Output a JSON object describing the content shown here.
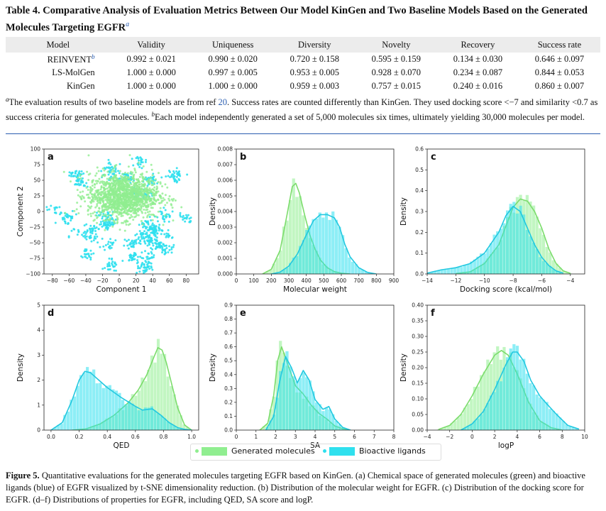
{
  "table": {
    "title": "Table 4. Comparative Analysis of Evaluation Metrics Between Our Model KinGen and Two Baseline Models Based on the Generated Molecules Targeting EGFR",
    "title_mark": "a",
    "headers": [
      "Model",
      "Validity",
      "Uniqueness",
      "Diversity",
      "Novelty",
      "Recovery",
      "Success rate"
    ],
    "rows": [
      {
        "model": "REINVENT",
        "mark": "b",
        "cells": [
          "0.992 ± 0.021",
          "0.990 ± 0.020",
          "0.720 ± 0.158",
          "0.595 ± 0.159",
          "0.134 ± 0.030",
          "0.646 ± 0.097"
        ]
      },
      {
        "model": "LS-MolGen",
        "mark": "",
        "cells": [
          "1.000 ± 0.000",
          "0.997 ± 0.005",
          "0.953 ± 0.005",
          "0.928 ± 0.070",
          "0.234 ± 0.087",
          "0.844 ± 0.053"
        ]
      },
      {
        "model": "KinGen",
        "mark": "",
        "cells": [
          "1.000 ± 0.000",
          "1.000 ± 0.000",
          "0.959 ± 0.003",
          "0.757 ± 0.015",
          "0.240 ± 0.016",
          "0.860 ± 0.007"
        ]
      }
    ],
    "footnote": {
      "a_mark": "a",
      "a_pre": "The evaluation results of two baseline models are from ref ",
      "a_ref": "20",
      "a_post": ". Success rates are counted differently than KinGen. They used docking score <−7 and similarity <0.7 as success criteria for generated molecules. ",
      "b_mark": "b",
      "b_text": "Each model independently generated a set of 5,000 molecules six times, ultimately yielding 30,000 molecules per model."
    }
  },
  "figure": {
    "colors": {
      "generated": "#90ee90",
      "bioactive": "#2fe0ee",
      "generated_line": "#7cdc6c",
      "bioactive_line": "#22c8e0"
    },
    "legend": {
      "generated": "Generated molecules",
      "bioactive": "Bioactive ligands"
    },
    "caption_label": "Figure 5.",
    "caption_text": " Quantitative evaluations for the generated molecules targeting EGFR based on KinGen. (a) Chemical space of generated molecules (green) and bioactive ligands (blue) of EGFR visualized by t-SNE dimensionality reduction. (b) Distribution of the molecular weight for EGFR. (c) Distribution of the docking score for EGFR. (d–f) Distributions of properties for EGFR, including QED, SA score and logP."
  },
  "chart_data": [
    {
      "type": "scatter",
      "panel": "a",
      "xlabel": "Component 1",
      "ylabel": "Component 2",
      "xlim": [
        -90,
        95
      ],
      "ylim": [
        -100,
        100
      ],
      "xticks": [
        -80,
        -60,
        -40,
        -20,
        0,
        20,
        40,
        60,
        80
      ],
      "yticks": [
        -100,
        -75,
        -50,
        -25,
        0,
        25,
        50,
        75,
        100
      ],
      "series": [
        {
          "name": "Generated molecules",
          "center": [
            5,
            25
          ],
          "spread": [
            28,
            26
          ]
        },
        {
          "name": "Bioactive ligands",
          "center": [
            0,
            0
          ],
          "spread": [
            55,
            50
          ]
        }
      ]
    },
    {
      "type": "area",
      "panel": "b",
      "xlabel": "Molecular weight",
      "ylabel": "Density",
      "xlim": [
        0,
        900
      ],
      "ylim": [
        0,
        0.008
      ],
      "xticks": [
        0,
        100,
        200,
        300,
        400,
        500,
        600,
        700,
        800,
        900
      ],
      "yticks": [
        0,
        0.001,
        0.002,
        0.003,
        0.004,
        0.005,
        0.006,
        0.007,
        0.008
      ],
      "series": [
        {
          "name": "Generated molecules",
          "x": [
            150,
            200,
            250,
            290,
            320,
            340,
            360,
            390,
            420,
            450,
            480,
            520,
            560,
            600,
            650
          ],
          "y": [
            0,
            0.0003,
            0.0015,
            0.0038,
            0.0056,
            0.0058,
            0.0052,
            0.0038,
            0.0025,
            0.0016,
            0.0009,
            0.0004,
            0.00015,
            5e-05,
            0
          ]
        },
        {
          "name": "Bioactive ligands",
          "x": [
            200,
            250,
            300,
            350,
            400,
            440,
            480,
            520,
            560,
            590,
            620,
            650,
            700,
            750,
            800
          ],
          "y": [
            0,
            0.00012,
            0.0005,
            0.0013,
            0.0025,
            0.0034,
            0.0038,
            0.0038,
            0.0036,
            0.003,
            0.0019,
            0.0011,
            0.0004,
            0.0001,
            0
          ]
        }
      ]
    },
    {
      "type": "area",
      "panel": "c",
      "xlabel": "Docking score (kcal/mol)",
      "ylabel": "Density",
      "xlim": [
        -14,
        -3
      ],
      "ylim": [
        0,
        0.6
      ],
      "xticks": [
        -14,
        -12,
        -10,
        -8,
        -6,
        -4
      ],
      "yticks": [
        0,
        0.1,
        0.2,
        0.3,
        0.4,
        0.5,
        0.6
      ],
      "series": [
        {
          "name": "Generated molecules",
          "x": [
            -12,
            -11,
            -10,
            -9,
            -8.5,
            -8,
            -7.5,
            -7,
            -6.5,
            -6,
            -5.5,
            -5,
            -4.5,
            -4
          ],
          "y": [
            0.002,
            0.01,
            0.05,
            0.14,
            0.23,
            0.32,
            0.36,
            0.35,
            0.3,
            0.22,
            0.12,
            0.05,
            0.015,
            0.003
          ]
        },
        {
          "name": "Bioactive ligands",
          "x": [
            -14,
            -13,
            -12,
            -11,
            -10,
            -9,
            -8.5,
            -8,
            -7.5,
            -7,
            -6.5,
            -6,
            -5.5,
            -5,
            -4.5
          ],
          "y": [
            0.004,
            0.02,
            0.03,
            0.05,
            0.1,
            0.2,
            0.28,
            0.325,
            0.3,
            0.22,
            0.14,
            0.08,
            0.04,
            0.015,
            0.004
          ]
        }
      ]
    },
    {
      "type": "area",
      "panel": "d",
      "xlabel": "QED",
      "ylabel": "Density",
      "xlim": [
        -0.05,
        1.05
      ],
      "ylim": [
        0,
        5
      ],
      "xticks": [
        0,
        0.2,
        0.4,
        0.6,
        0.8,
        1.0
      ],
      "yticks": [
        0,
        1,
        2,
        3,
        4,
        5
      ],
      "series": [
        {
          "name": "Generated molecules",
          "x": [
            0.15,
            0.25,
            0.35,
            0.45,
            0.55,
            0.62,
            0.68,
            0.73,
            0.76,
            0.79,
            0.82,
            0.86,
            0.9,
            0.95,
            1.0
          ],
          "y": [
            0,
            0.05,
            0.25,
            0.6,
            1.1,
            1.6,
            2.2,
            2.9,
            3.3,
            3.2,
            2.7,
            1.8,
            0.9,
            0.2,
            0
          ]
        },
        {
          "name": "Bioactive ligands",
          "x": [
            0.0,
            0.08,
            0.15,
            0.2,
            0.24,
            0.28,
            0.33,
            0.4,
            0.5,
            0.6,
            0.65,
            0.72,
            0.78,
            0.84,
            0.9,
            0.95,
            1.0
          ],
          "y": [
            0,
            0.3,
            1.2,
            2.0,
            2.35,
            2.3,
            2.05,
            1.7,
            1.3,
            0.95,
            0.8,
            0.85,
            0.6,
            0.3,
            0.1,
            0.03,
            0
          ]
        }
      ]
    },
    {
      "type": "area",
      "panel": "e",
      "xlabel": "SA",
      "ylabel": "Density",
      "xlim": [
        0,
        8
      ],
      "ylim": [
        0,
        0.9
      ],
      "xticks": [
        0,
        1,
        2,
        3,
        4,
        5,
        6,
        7,
        8
      ],
      "yticks": [
        0,
        0.1,
        0.2,
        0.3,
        0.4,
        0.5,
        0.6,
        0.7,
        0.8,
        0.9
      ],
      "series": [
        {
          "name": "Generated molecules",
          "x": [
            1.2,
            1.6,
            1.9,
            2.1,
            2.3,
            2.6,
            3.0,
            3.4,
            3.8,
            4.2,
            4.6,
            5.0,
            5.4,
            5.8
          ],
          "y": [
            0,
            0.05,
            0.25,
            0.5,
            0.6,
            0.48,
            0.32,
            0.26,
            0.18,
            0.12,
            0.08,
            0.03,
            0.01,
            0
          ]
        },
        {
          "name": "Bioactive ligands",
          "x": [
            1.5,
            1.9,
            2.2,
            2.5,
            2.8,
            3.1,
            3.4,
            3.7,
            4.0,
            4.4,
            4.7,
            5.0,
            5.4,
            5.8
          ],
          "y": [
            0,
            0.1,
            0.35,
            0.53,
            0.45,
            0.34,
            0.43,
            0.36,
            0.22,
            0.15,
            0.17,
            0.08,
            0.02,
            0
          ]
        }
      ]
    },
    {
      "type": "area",
      "panel": "f",
      "xlabel": "logP",
      "ylabel": "Density",
      "xlim": [
        -4,
        10
      ],
      "ylim": [
        0,
        0.4
      ],
      "xticks": [
        -4,
        -2,
        0,
        2,
        4,
        6,
        8,
        10
      ],
      "yticks": [
        0,
        0.05,
        0.1,
        0.15,
        0.2,
        0.25,
        0.3,
        0.35,
        0.4
      ],
      "series": [
        {
          "name": "Generated molecules",
          "x": [
            -3,
            -2,
            -1,
            0,
            1,
            2,
            2.6,
            3.2,
            4,
            5,
            6,
            7,
            8
          ],
          "y": [
            0.002,
            0.015,
            0.05,
            0.11,
            0.18,
            0.24,
            0.255,
            0.24,
            0.18,
            0.09,
            0.03,
            0.008,
            0
          ]
        },
        {
          "name": "Bioactive ligands",
          "x": [
            -1,
            0,
            1,
            2,
            3,
            3.6,
            4,
            4.6,
            5.2,
            6,
            6.6,
            7.5,
            8.5,
            9.5
          ],
          "y": [
            0,
            0.02,
            0.06,
            0.13,
            0.21,
            0.25,
            0.25,
            0.22,
            0.16,
            0.11,
            0.085,
            0.05,
            0.015,
            0.003
          ]
        }
      ]
    }
  ]
}
